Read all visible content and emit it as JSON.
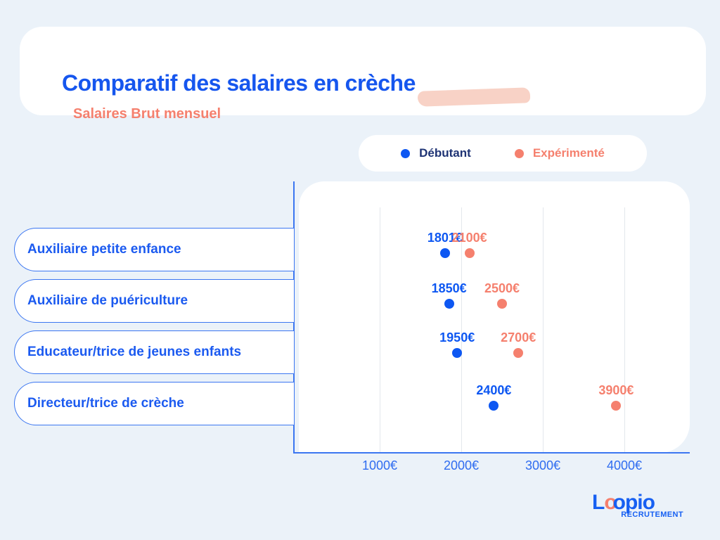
{
  "header": {
    "title": "Comparatif des salaires en crèche",
    "subtitle": "Salaires Brut mensuel"
  },
  "legend": {
    "items": [
      {
        "label": "Débutant",
        "dot_color": "#0d57f2",
        "text_color": "#1e3374"
      },
      {
        "label": "Expérimenté",
        "dot_color": "#f5806e",
        "text_color": "#f5806e"
      }
    ]
  },
  "chart_data": {
    "type": "scatter",
    "subtype": "horizontal-dot-plot",
    "title": "Comparatif des salaires en crèche",
    "subtitle": "Salaires Brut mensuel",
    "categories": [
      "Auxiliaire petite enfance",
      "Auxiliaire de puériculture",
      "Educateur/trice de jeunes enfants",
      "Directeur/trice de crèche"
    ],
    "series": [
      {
        "name": "Débutant",
        "color": "#0d57f2",
        "values": [
          1801,
          1850,
          1950,
          2400
        ],
        "labels": [
          "1801€",
          "1850€",
          "1950€",
          "2400€"
        ]
      },
      {
        "name": "Expérimenté",
        "color": "#f5806e",
        "values": [
          2100,
          2500,
          2700,
          3900
        ],
        "labels": [
          "2100€",
          "2500€",
          "2700€",
          "3900€"
        ]
      }
    ],
    "x_axis": {
      "ticks": [
        1000,
        2000,
        3000,
        4000
      ],
      "tick_labels": [
        "1000€",
        "2000€",
        "3000€",
        "4000€"
      ],
      "range": [
        0,
        4800
      ],
      "unit": "€"
    },
    "grid": true,
    "legend_position": "top"
  },
  "colors": {
    "background": "#ebf2f9",
    "card": "#ffffff",
    "primary_blue": "#1656ee",
    "axis_blue": "#3b76f1",
    "coral": "#f5806e",
    "highlight": "#f8d2c6",
    "gridline": "#e3e7ec"
  },
  "footer": {
    "logo_l": "L",
    "logo_o1": "o",
    "logo_o2": "o",
    "logo_rest": "pio",
    "logo_sub": "RECRUTEMENT"
  }
}
